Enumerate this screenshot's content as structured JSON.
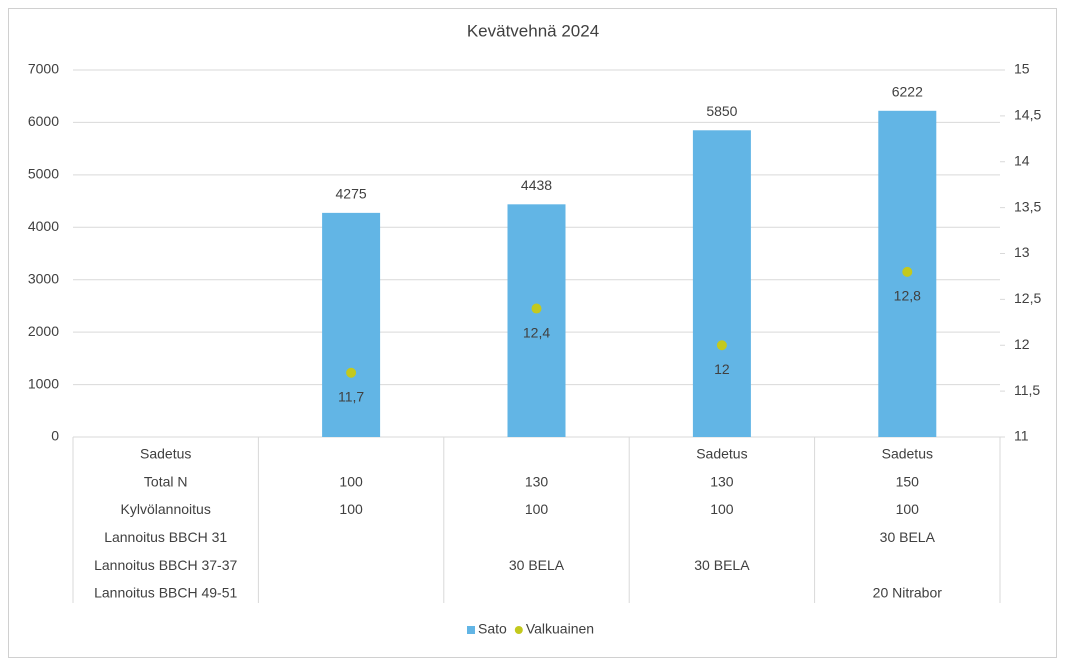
{
  "chart_data": {
    "type": "bar-scatter",
    "title": "Kevätvehnä 2024",
    "categories": [
      null,
      null,
      null,
      null,
      null
    ],
    "category_table": [
      [
        "Sadetus",
        "Total N",
        "Kylvölannoitus",
        "Lannoitus BBCH 31",
        "Lannoitus BBCH 37-37",
        "Lannoitus BBCH 49-51"
      ],
      [
        null,
        "100",
        "100",
        null,
        null,
        null
      ],
      [
        null,
        "130",
        "100",
        null,
        "30 BELA",
        null
      ],
      [
        "Sadetus",
        "130",
        "100",
        null,
        "30 BELA",
        null
      ],
      [
        "Sadetus",
        "150",
        "100",
        "30 BELA",
        null,
        "20 Nitrabor"
      ]
    ],
    "series": [
      {
        "name": "Sato",
        "type": "bar",
        "color": "#62b5e5",
        "axis": "y",
        "values": [
          null,
          4275,
          4438,
          5850,
          6222
        ]
      },
      {
        "name": "Valkuainen",
        "type": "scatter",
        "color": "#c3c91e",
        "axis": "y2",
        "values": [
          null,
          11.7,
          12.4,
          12,
          12.8
        ],
        "value_labels": [
          null,
          "11,7",
          "12,4",
          "12",
          "12,8"
        ]
      }
    ],
    "ylim": [
      0,
      7000
    ],
    "yticks": [
      0,
      1000,
      2000,
      3000,
      4000,
      5000,
      6000,
      7000
    ],
    "y2lim": [
      11,
      15
    ],
    "y2ticks": [
      11,
      {
        "value": 11.5,
        "label": "11,5"
      },
      12,
      {
        "value": 12.5,
        "label": "12,5"
      },
      13,
      {
        "value": 13.5,
        "label": "13,5"
      },
      14,
      {
        "value": 14.5,
        "label": "14,5"
      },
      15
    ],
    "grid": true,
    "legend": "bottom"
  }
}
